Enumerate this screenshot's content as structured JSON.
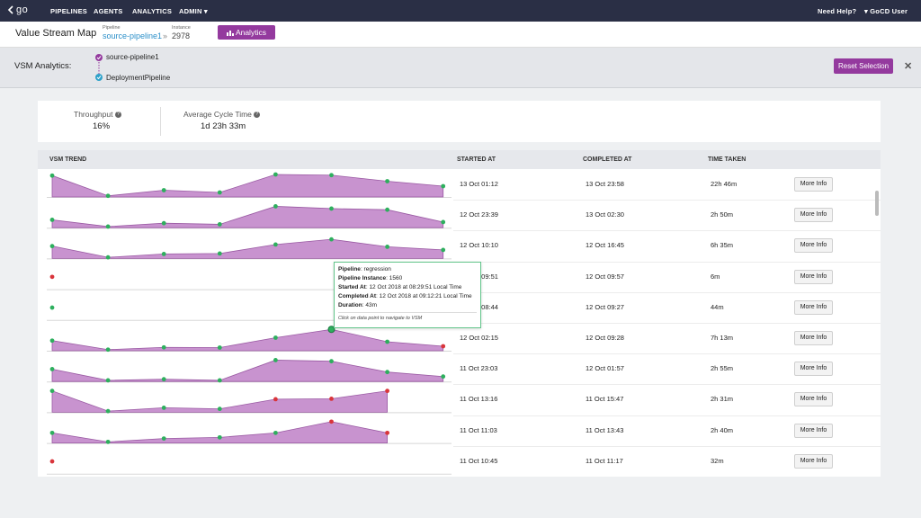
{
  "nav": {
    "logo": "go",
    "items": [
      "PIPELINES",
      "AGENTS",
      "ANALYTICS",
      "ADMIN"
    ],
    "admin_caret": "▾",
    "help": "Need Help?",
    "user": "GoCD User",
    "user_caret": "▾"
  },
  "header": {
    "title": "Value Stream Map",
    "pipeline_label": "Pipeline",
    "pipeline_value": "source-pipeline1",
    "separator": "»",
    "instance_label": "Instance",
    "instance_value": "2978",
    "analytics_button": "Analytics"
  },
  "vsm": {
    "label": "VSM Analytics:",
    "pipelines": [
      "source-pipeline1",
      "DeploymentPipeline"
    ],
    "reset_button": "Reset Selection",
    "close": "✕"
  },
  "metrics": {
    "throughput_label": "Throughput",
    "throughput_value": "16%",
    "cycle_label": "Average Cycle Time",
    "cycle_value": "1d 23h 33m",
    "help_glyph": "?"
  },
  "table": {
    "headers": [
      "VSM TREND",
      "STARTED AT",
      "COMPLETED AT",
      "TIME TAKEN"
    ],
    "more_info": "More Info",
    "rows": [
      {
        "started": "13 Oct 01:12",
        "completed": "13 Oct 23:58",
        "taken": "22h 46m"
      },
      {
        "started": "12 Oct 23:39",
        "completed": "13 Oct 02:30",
        "taken": "2h 50m"
      },
      {
        "started": "12 Oct 10:10",
        "completed": "12 Oct 16:45",
        "taken": "6h 35m"
      },
      {
        "started": "12 Oct 09:51",
        "completed": "12 Oct 09:57",
        "taken": "6m"
      },
      {
        "started": "12 Oct 08:44",
        "completed": "12 Oct 09:27",
        "taken": "44m"
      },
      {
        "started": "12 Oct 02:15",
        "completed": "12 Oct 09:28",
        "taken": "7h 13m"
      },
      {
        "started": "11 Oct 23:03",
        "completed": "12 Oct 01:57",
        "taken": "2h 55m"
      },
      {
        "started": "11 Oct 13:16",
        "completed": "11 Oct 15:47",
        "taken": "2h 31m"
      },
      {
        "started": "11 Oct 11:03",
        "completed": "11 Oct 13:43",
        "taken": "2h 40m"
      },
      {
        "started": "11 Oct 10:45",
        "completed": "11 Oct 11:17",
        "taken": "32m"
      }
    ]
  },
  "tooltip": {
    "pipeline_label": "Pipeline",
    "pipeline_value": ": regression",
    "instance_label": "Pipeline Instance",
    "instance_value": ": 1560",
    "started_label": "Started At",
    "started_value": ": 12 Oct 2018 at 08:29:51 Local Time",
    "completed_label": "Completed At",
    "completed_value": ": 12 Oct 2018 at 09:12:21 Local Time",
    "duration_label": "Duration",
    "duration_value": ": 43m",
    "hint": "Click on data point to navigate to VSM"
  },
  "colors": {
    "nav_bg": "#2a2f45",
    "accent": "#943a9e",
    "area_fill": "#c893cf",
    "area_line": "#9a5aa3",
    "point_ok": "#2eaf5e",
    "point_fail": "#d9353b"
  },
  "trends": [
    {
      "values": [
        0.95,
        0.05,
        0.3,
        0.2,
        1.0,
        0.97,
        0.7,
        0.48
      ],
      "status": [
        "g",
        "g",
        "g",
        "g",
        "g",
        "g",
        "g",
        "g"
      ]
    },
    {
      "values": [
        0.35,
        0.05,
        0.2,
        0.15,
        0.95,
        0.85,
        0.8,
        0.25
      ],
      "status": [
        "g",
        "g",
        "g",
        "g",
        "g",
        "g",
        "g",
        "g"
      ]
    },
    {
      "values": [
        0.55,
        0.05,
        0.2,
        0.22,
        0.62,
        0.85,
        0.52,
        0.38
      ],
      "status": [
        "g",
        "g",
        "g",
        "g",
        "g",
        "g",
        "g",
        "g"
      ]
    },
    {
      "values": [
        0.55
      ],
      "status": [
        "r"
      ]
    },
    {
      "values": [
        0.55
      ],
      "status": [
        "g"
      ]
    },
    {
      "values": [
        0.45,
        0.05,
        0.15,
        0.14,
        0.58,
        0.95,
        0.4,
        0.2
      ],
      "status": [
        "g",
        "g",
        "g",
        "g",
        "g",
        "g",
        "g",
        "r"
      ]
    },
    {
      "values": [
        0.55,
        0.05,
        0.1,
        0.05,
        0.95,
        0.9,
        0.42,
        0.22
      ],
      "status": [
        "g",
        "g",
        "g",
        "g",
        "g",
        "g",
        "g",
        "g"
      ]
    },
    {
      "values": [
        0.95,
        0.05,
        0.2,
        0.15,
        0.58,
        0.6,
        0.95
      ],
      "status": [
        "g",
        "g",
        "g",
        "g",
        "r",
        "r",
        "r"
      ]
    },
    {
      "values": [
        0.45,
        0.05,
        0.2,
        0.25,
        0.45,
        0.95,
        0.45
      ],
      "status": [
        "g",
        "g",
        "g",
        "g",
        "g",
        "r",
        "r"
      ]
    },
    {
      "values": [
        0.55
      ],
      "status": [
        "r"
      ]
    }
  ]
}
